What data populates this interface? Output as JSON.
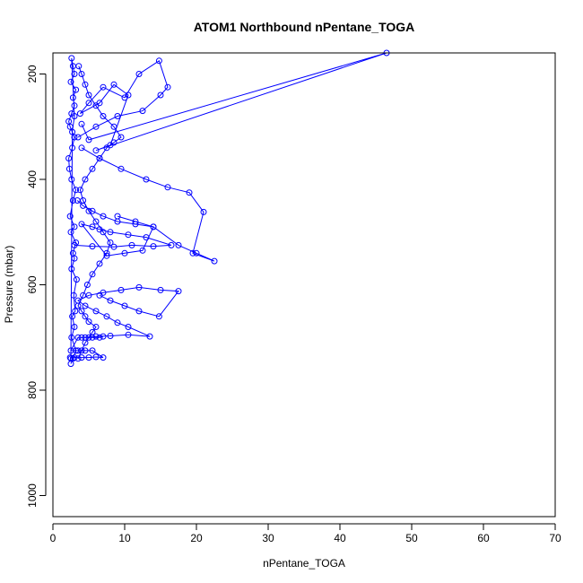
{
  "chart_data": {
    "type": "line",
    "title": "ATOM1 Northbound nPentane_TOGA",
    "xlabel": "nPentane_TOGA",
    "ylabel": "Pressure (mbar)",
    "xlim": [
      0,
      70
    ],
    "ylim": [
      160,
      1040
    ],
    "y_reversed": true,
    "x_ticks": [
      "0",
      "10",
      "20",
      "30",
      "40",
      "50",
      "60",
      "70"
    ],
    "y_ticks": [
      "200",
      "400",
      "600",
      "800",
      "1000"
    ],
    "grid": false,
    "legend": "none",
    "marker": "open-circle",
    "color": "#0000ff",
    "series": [
      {
        "x": [
          2.5,
          2.8,
          3.2,
          2.6,
          3.0,
          2.7,
          3.1,
          2.9,
          3.3,
          2.6,
          3.0,
          2.8,
          3.2,
          2.5,
          3.0,
          2.4,
          2.8,
          3.2,
          2.6,
          2.3,
          2.2,
          2.7,
          3.0,
          2.4,
          2.2,
          2.6,
          3.0,
          2.8,
          3.2,
          2.5,
          3.0,
          2.8,
          2.6,
          3.0,
          2.7,
          2.5
        ],
        "y": [
          750,
          740,
          725,
          700,
          680,
          660,
          650,
          620,
          590,
          570,
          550,
          540,
          520,
          500,
          490,
          470,
          440,
          420,
          400,
          380,
          360,
          340,
          320,
          300,
          290,
          275,
          260,
          245,
          230,
          215,
          200,
          185,
          170,
          280,
          310,
          740
        ]
      },
      {
        "x": [
          3.5,
          4.0,
          4.5,
          5.0,
          5.5,
          6.0,
          5.0,
          4.5,
          4.0,
          3.5,
          4.2,
          4.8,
          5.5,
          6.5,
          7.5,
          8.0,
          7.0,
          6.0,
          5.0,
          4.2,
          3.8,
          4.5,
          5.5,
          6.5,
          7.5,
          8.5,
          9.5,
          8.5,
          7.0,
          6.0,
          5.0,
          4.5,
          4.0,
          3.6
        ],
        "y": [
          740,
          725,
          710,
          700,
          690,
          680,
          670,
          660,
          650,
          640,
          620,
          600,
          580,
          560,
          540,
          520,
          500,
          480,
          460,
          440,
          420,
          400,
          380,
          360,
          340,
          330,
          320,
          300,
          280,
          260,
          240,
          220,
          200,
          185
        ]
      },
      {
        "x": [
          4.0,
          6.0,
          8.0,
          10.5,
          13.5,
          10.5,
          9.0,
          7.5,
          6.0,
          4.5,
          3.5,
          5.0,
          7.0,
          9.5,
          12.0,
          15.0,
          17.5,
          14.8,
          12.0,
          10.0,
          8.0,
          6.5
        ],
        "y": [
          700,
          698,
          697,
          695,
          698,
          680,
          672,
          660,
          650,
          640,
          630,
          620,
          615,
          610,
          605,
          610,
          612,
          660,
          650,
          640,
          630,
          620
        ]
      },
      {
        "x": [
          3.0,
          5.5,
          8.5,
          11.0,
          14.0,
          16.5,
          13.0,
          10.5,
          8.0,
          6.5,
          5.5,
          4.0,
          7.5,
          10.0,
          12.5,
          14.0,
          11.5,
          9.0,
          7.0,
          5.5,
          4.2,
          3.4
        ],
        "y": [
          525,
          527,
          528,
          525,
          527,
          525,
          510,
          505,
          500,
          495,
          490,
          485,
          545,
          540,
          535,
          490,
          485,
          480,
          470,
          460,
          450,
          440
        ]
      },
      {
        "x": [
          4.0,
          6.5,
          9.5,
          13.0,
          16.0,
          19.0,
          21.0,
          19.5,
          22.5,
          20.0,
          17.5,
          14.0,
          11.5,
          9.0
        ],
        "y": [
          340,
          360,
          380,
          400,
          415,
          425,
          462,
          540,
          555,
          540,
          525,
          490,
          480,
          470
        ]
      },
      {
        "x": [
          3.5,
          6.0,
          9.0,
          12.5,
          15.0,
          16.0,
          14.8,
          12.0,
          10.0,
          7.0,
          5.0,
          3.8,
          6.5,
          8.5,
          10.5,
          8.0,
          6.0,
          46.5,
          5.0,
          4.0
        ],
        "y": [
          320,
          300,
          280,
          270,
          240,
          225,
          175,
          200,
          245,
          225,
          255,
          275,
          255,
          220,
          240,
          335,
          345,
          160,
          325,
          295
        ]
      },
      {
        "x": [
          2.4,
          3.0,
          4.0,
          5.0,
          6.0,
          7.0,
          5.5,
          4.5,
          3.5,
          2.5,
          3.5,
          4.5,
          5.5,
          6.5,
          7.0
        ],
        "y": [
          738,
          738,
          738,
          738,
          737,
          738,
          725,
          725,
          725,
          725,
          700,
          700,
          700,
          700,
          698
        ]
      }
    ]
  }
}
